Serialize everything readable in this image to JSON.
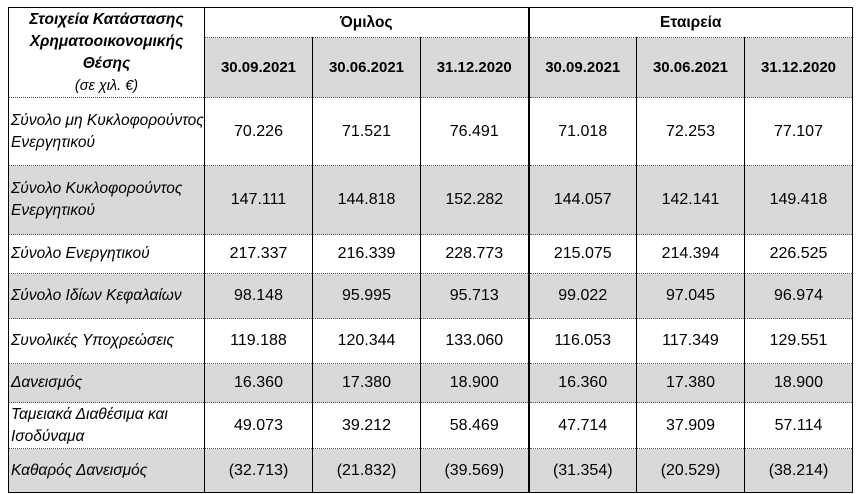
{
  "table": {
    "corner_title": "Στοιχεία Κατάστασης Χρηματοοικονομικής Θέσης",
    "corner_unit": "(σε χιλ. €)",
    "groups": [
      "Όμιλος",
      "Εταιρεία"
    ],
    "dates": [
      "30.09.2021",
      "30.06.2021",
      "31.12.2020",
      "30.09.2021",
      "30.06.2021",
      "31.12.2020"
    ],
    "rows": [
      {
        "label": "Σύνολο μη Κυκλοφορούντος Ενεργητικού",
        "values": [
          "70.226",
          "71.521",
          "76.491",
          "71.018",
          "72.253",
          "77.107"
        ]
      },
      {
        "label": "Σύνολο Κυκλοφορούντος Ενεργητικού",
        "values": [
          "147.111",
          "144.818",
          "152.282",
          "144.057",
          "142.141",
          "149.418"
        ]
      },
      {
        "label": "Σύνολο Ενεργητικού",
        "values": [
          "217.337",
          "216.339",
          "228.773",
          "215.075",
          "214.394",
          "226.525"
        ]
      },
      {
        "label": "Σύνολο Ιδίων Κεφαλαίων",
        "values": [
          "98.148",
          "95.995",
          "95.713",
          "99.022",
          "97.045",
          "96.974"
        ]
      },
      {
        "label": "Συνολικές Υποχρεώσεις",
        "values": [
          "119.188",
          "120.344",
          "133.060",
          "116.053",
          "117.349",
          "129.551"
        ]
      },
      {
        "label": "Δανεισμός",
        "values": [
          "16.360",
          "17.380",
          "18.900",
          "16.360",
          "17.380",
          "18.900"
        ]
      },
      {
        "label": "Ταμειακά Διαθέσιμα και Ισοδύναμα",
        "values": [
          "49.073",
          "39.212",
          "58.469",
          "47.714",
          "37.909",
          "57.114"
        ]
      },
      {
        "label": "Καθαρός Δανεισμός",
        "values": [
          "(32.713)",
          "(21.832)",
          "(39.569)",
          "(31.354)",
          "(20.529)",
          "(38.214)"
        ]
      }
    ]
  },
  "colors": {
    "shade": "#d9d9d9",
    "border": "#000000"
  }
}
